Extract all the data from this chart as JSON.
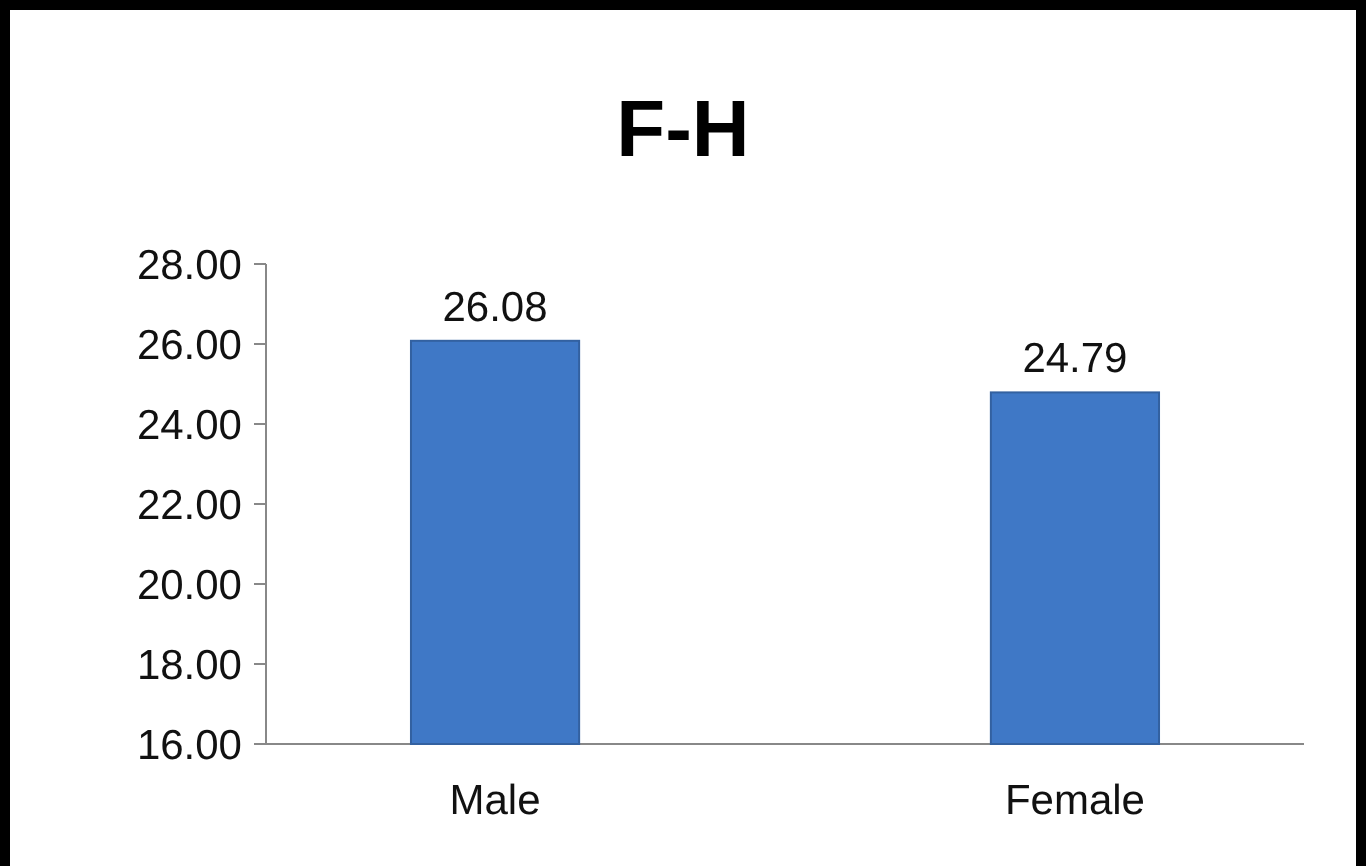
{
  "chart_data": {
    "type": "bar",
    "title": "F-H",
    "categories": [
      "Male",
      "Female"
    ],
    "values": [
      26.08,
      24.79
    ],
    "color": "#3f78c6",
    "ylim": [
      16,
      28
    ],
    "yticks": [
      {
        "value": 16,
        "label": "16.00"
      },
      {
        "value": 18,
        "label": "18.00"
      },
      {
        "value": 20,
        "label": "20.00"
      },
      {
        "value": 22,
        "label": "22.00"
      },
      {
        "value": 24,
        "label": "24.00"
      },
      {
        "value": 26,
        "label": "26.00"
      },
      {
        "value": 28,
        "label": "28.00"
      }
    ],
    "data_labels": true,
    "grid": false
  }
}
